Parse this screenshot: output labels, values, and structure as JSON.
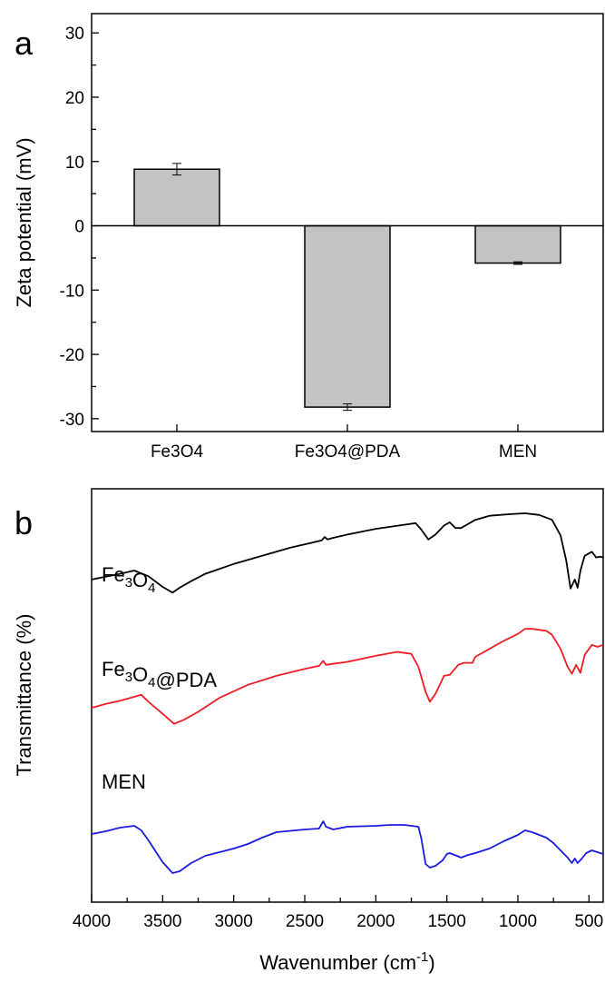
{
  "chart_data": [
    {
      "panel": "a",
      "type": "bar",
      "ylabel": "Zeta potential (mV)",
      "ylim": [
        -32,
        33
      ],
      "yticks": [
        30,
        20,
        10,
        0,
        -10,
        -20,
        -30
      ],
      "categories": [
        "Fe3O4",
        "Fe3O4@PDA",
        "MEN"
      ],
      "values": [
        8.8,
        -28.2,
        -5.8
      ],
      "errors": [
        0.9,
        0.5,
        0.2
      ],
      "bar_color": "#c3c3c3",
      "grid": false
    },
    {
      "panel": "b",
      "type": "line",
      "xlabel": "Wavenumber (cm-1)",
      "xlabel_parts": {
        "main": "Wavenumber (cm",
        "sup": "-1",
        "close": ")"
      },
      "ylabel": "Transmittance (%)",
      "xlim": [
        4000,
        400
      ],
      "xticks": [
        4000,
        3500,
        3000,
        2500,
        2000,
        1500,
        1000,
        500
      ],
      "grid": false,
      "series": [
        {
          "name": "Fe3O4",
          "label_parts": [
            [
              "Fe",
              ""
            ],
            [
              "3",
              "sub"
            ],
            [
              "O",
              ""
            ],
            [
              "4",
              "sub"
            ]
          ],
          "color": "#000000",
          "points": [
            [
              4000,
              19
            ],
            [
              3800,
              26
            ],
            [
              3700,
              30
            ],
            [
              3600,
              23
            ],
            [
              3500,
              10
            ],
            [
              3430,
              3
            ],
            [
              3380,
              9
            ],
            [
              3300,
              17
            ],
            [
              3200,
              26
            ],
            [
              3000,
              38
            ],
            [
              2800,
              48
            ],
            [
              2600,
              58
            ],
            [
              2450,
              64
            ],
            [
              2380,
              67
            ],
            [
              2360,
              71
            ],
            [
              2340,
              68
            ],
            [
              2300,
              70
            ],
            [
              2200,
              74
            ],
            [
              2000,
              81
            ],
            [
              1800,
              86
            ],
            [
              1720,
              88
            ],
            [
              1680,
              80
            ],
            [
              1630,
              68
            ],
            [
              1580,
              74
            ],
            [
              1520,
              85
            ],
            [
              1480,
              89
            ],
            [
              1440,
              82
            ],
            [
              1400,
              82
            ],
            [
              1300,
              92
            ],
            [
              1200,
              97
            ],
            [
              1050,
              99
            ],
            [
              950,
              100
            ],
            [
              850,
              98
            ],
            [
              760,
              92
            ],
            [
              700,
              73
            ],
            [
              660,
              42
            ],
            [
              630,
              8
            ],
            [
              600,
              19
            ],
            [
              580,
              9
            ],
            [
              560,
              30
            ],
            [
              530,
              48
            ],
            [
              480,
              53
            ],
            [
              450,
              46
            ],
            [
              420,
              47
            ],
            [
              400,
              46
            ]
          ]
        },
        {
          "name": "Fe3O4@PDA",
          "label_parts": [
            [
              "Fe",
              ""
            ],
            [
              "3",
              "sub"
            ],
            [
              "O",
              ""
            ],
            [
              "4",
              "sub"
            ],
            [
              "@PDA",
              ""
            ]
          ],
          "color": "#ee1c25",
          "points": [
            [
              4000,
              19
            ],
            [
              3900,
              23
            ],
            [
              3800,
              26
            ],
            [
              3700,
              30
            ],
            [
              3650,
              32
            ],
            [
              3600,
              25
            ],
            [
              3500,
              13
            ],
            [
              3420,
              3
            ],
            [
              3350,
              7
            ],
            [
              3250,
              15
            ],
            [
              3100,
              29
            ],
            [
              2900,
              42
            ],
            [
              2700,
              51
            ],
            [
              2500,
              58
            ],
            [
              2400,
              61
            ],
            [
              2370,
              66
            ],
            [
              2350,
              62
            ],
            [
              2300,
              63
            ],
            [
              2200,
              65
            ],
            [
              2000,
              71
            ],
            [
              1850,
              75
            ],
            [
              1750,
              73
            ],
            [
              1700,
              60
            ],
            [
              1650,
              35
            ],
            [
              1620,
              25
            ],
            [
              1580,
              33
            ],
            [
              1520,
              51
            ],
            [
              1480,
              52
            ],
            [
              1420,
              62
            ],
            [
              1380,
              64
            ],
            [
              1320,
              64
            ],
            [
              1300,
              70
            ],
            [
              1200,
              78
            ],
            [
              1100,
              86
            ],
            [
              1000,
              93
            ],
            [
              950,
              98
            ],
            [
              900,
              98
            ],
            [
              850,
              97
            ],
            [
              800,
              96
            ],
            [
              760,
              92
            ],
            [
              700,
              78
            ],
            [
              650,
              60
            ],
            [
              620,
              53
            ],
            [
              590,
              62
            ],
            [
              560,
              54
            ],
            [
              530,
              72
            ],
            [
              480,
              82
            ],
            [
              440,
              80
            ],
            [
              400,
              82
            ]
          ]
        },
        {
          "name": "MEN",
          "label_parts": [
            [
              "MEN",
              ""
            ]
          ],
          "color": "#1b1bdf",
          "points": [
            [
              4000,
              17
            ],
            [
              3900,
              20
            ],
            [
              3800,
              24
            ],
            [
              3700,
              26
            ],
            [
              3650,
              21
            ],
            [
              3600,
              10
            ],
            [
              3500,
              -14
            ],
            [
              3430,
              -26
            ],
            [
              3380,
              -24
            ],
            [
              3300,
              -15
            ],
            [
              3200,
              -7
            ],
            [
              3100,
              -3
            ],
            [
              3000,
              1
            ],
            [
              2900,
              6
            ],
            [
              2800,
              13
            ],
            [
              2700,
              19
            ],
            [
              2500,
              22
            ],
            [
              2400,
              23
            ],
            [
              2370,
              31
            ],
            [
              2350,
              25
            ],
            [
              2300,
              22
            ],
            [
              2200,
              25
            ],
            [
              2000,
              26
            ],
            [
              1900,
              27
            ],
            [
              1800,
              27
            ],
            [
              1700,
              25
            ],
            [
              1680,
              12
            ],
            [
              1650,
              -16
            ],
            [
              1620,
              -20
            ],
            [
              1580,
              -18
            ],
            [
              1530,
              -12
            ],
            [
              1500,
              -5
            ],
            [
              1480,
              -4
            ],
            [
              1430,
              -7
            ],
            [
              1400,
              -9
            ],
            [
              1350,
              -6
            ],
            [
              1300,
              -4
            ],
            [
              1200,
              1
            ],
            [
              1100,
              9
            ],
            [
              1000,
              16
            ],
            [
              950,
              21
            ],
            [
              900,
              19
            ],
            [
              800,
              13
            ],
            [
              750,
              7
            ],
            [
              700,
              -1
            ],
            [
              650,
              -9
            ],
            [
              620,
              -15
            ],
            [
              600,
              -10
            ],
            [
              580,
              -15
            ],
            [
              550,
              -10
            ],
            [
              520,
              -4
            ],
            [
              480,
              -1
            ],
            [
              440,
              -3
            ],
            [
              400,
              -5
            ]
          ]
        }
      ]
    }
  ],
  "panel_labels": {
    "a": "a",
    "b": "b"
  },
  "colors": {
    "axis": "#000000",
    "bar": "#c3c3c3",
    "black_series": "#000000",
    "red_series": "#ee1c25",
    "blue_series": "#1b1bdf"
  }
}
